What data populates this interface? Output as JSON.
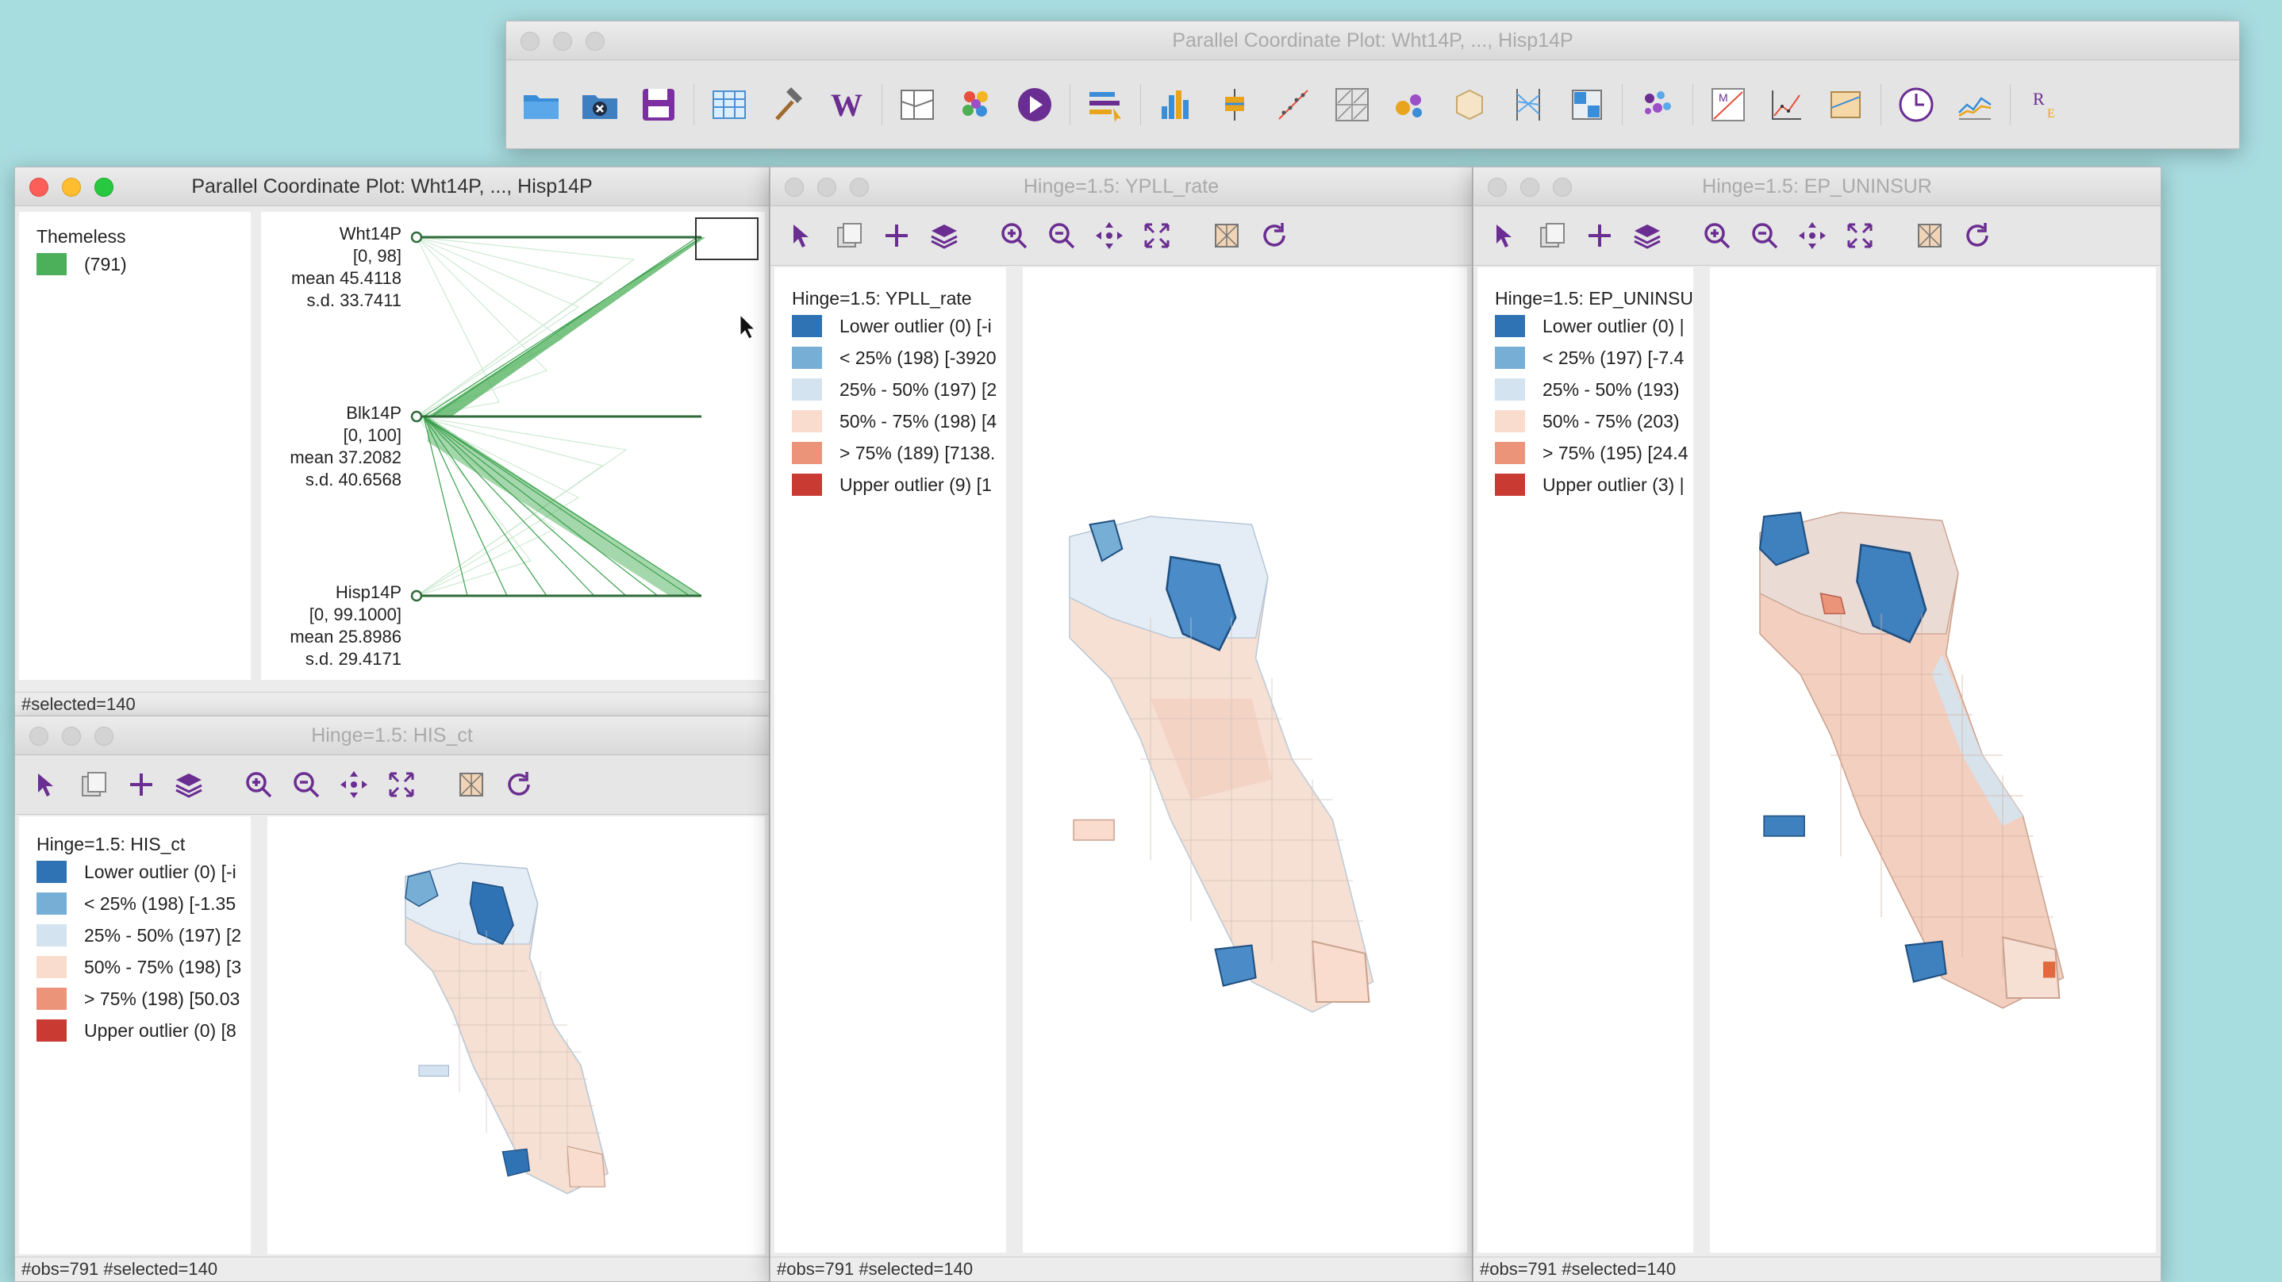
{
  "main_window": {
    "title": "Parallel Coordinate Plot: Wht14P, ..., Hisp14P"
  },
  "main_toolbar": {
    "icons": [
      "folder-open-icon",
      "close-project-icon",
      "save-icon",
      "table-icon",
      "hammer-icon",
      "weights-icon",
      "map-grid-icon",
      "cluster-icon",
      "play-icon",
      "category-editor-icon",
      "histogram-icon",
      "box-plot-icon",
      "scatter-plot-icon",
      "scatter-matrix-icon",
      "bubble-chart-icon",
      "cube-3d-icon",
      "parallel-coordinate-icon",
      "conditional-plot-icon",
      "lisa-cluster-icon",
      "moran-scatter-icon",
      "moran-matrix-icon",
      "correlogram-icon",
      "time-editor-icon",
      "line-chart-icon",
      "regression-icon"
    ]
  },
  "pcp": {
    "title": "Parallel Coordinate Plot: Wht14P, ..., Hisp14P",
    "legend_title": "Themeless",
    "legend_count": "(791)",
    "legend_color": "#4caf5a",
    "axes": [
      {
        "name": "Wht14P",
        "range": "[0, 98]",
        "mean": "mean  45.4118",
        "sd": "s.d.  33.7411"
      },
      {
        "name": "Blk14P",
        "range": "[0, 100]",
        "mean": "mean  37.2082",
        "sd": "s.d.  40.6568"
      },
      {
        "name": "Hisp14P",
        "range": "[0, 99.1000]",
        "mean": "mean  25.8986",
        "sd": "s.d.  29.4171"
      }
    ],
    "status": "#selected=140"
  },
  "maps": {
    "his": {
      "title": "Hinge=1.5: HIS_ct",
      "legend_title": "Hinge=1.5: HIS_ct",
      "items": [
        {
          "label": "Lower outlier (0)  [-i",
          "color": "#2f73b5"
        },
        {
          "label": "< 25% (198)  [-1.35",
          "color": "#76aed6"
        },
        {
          "label": "25% - 50% (197)  [2",
          "color": "#d4e3f0"
        },
        {
          "label": "50% - 75% (198)  [3",
          "color": "#f9dccd"
        },
        {
          "label": "> 75% (198)  [50.03",
          "color": "#eb9479"
        },
        {
          "label": "Upper outlier (0)  [8",
          "color": "#c93a33"
        }
      ],
      "status": "#obs=791 #selected=140"
    },
    "ypll": {
      "title": "Hinge=1.5: YPLL_rate",
      "legend_title": "Hinge=1.5: YPLL_rate",
      "items": [
        {
          "label": "Lower outlier (0)  [-i",
          "color": "#2f73b5"
        },
        {
          "label": "< 25% (198)  [-3920",
          "color": "#76aed6"
        },
        {
          "label": "25% - 50% (197)  [2",
          "color": "#d4e3f0"
        },
        {
          "label": "50% - 75% (198)  [4",
          "color": "#f9dccd"
        },
        {
          "label": "> 75% (189)  [7138.",
          "color": "#eb9479"
        },
        {
          "label": "Upper outlier (9)  [1",
          "color": "#c93a33"
        }
      ],
      "status": "#obs=791 #selected=140"
    },
    "epun": {
      "title": "Hinge=1.5: EP_UNINSUR",
      "legend_title": "Hinge=1.5: EP_UNINSU",
      "items": [
        {
          "label": "Lower outlier (0)  |",
          "color": "#2f73b5"
        },
        {
          "label": "< 25% (197)  [-7.4",
          "color": "#76aed6"
        },
        {
          "label": "25% - 50% (193)",
          "color": "#d4e3f0"
        },
        {
          "label": "50% - 75% (203)",
          "color": "#f9dccd"
        },
        {
          "label": "> 75% (195)  [24.4",
          "color": "#eb9479"
        },
        {
          "label": "Upper outlier (3)  |",
          "color": "#c93a33"
        }
      ],
      "status": "#obs=791 #selected=140"
    }
  },
  "map_toolbar_icons": [
    "select-icon",
    "copy-icon",
    "add-icon",
    "layers-icon",
    "zoom-in-icon",
    "zoom-out-icon",
    "pan-icon",
    "full-extent-icon",
    "basemap-icon",
    "refresh-icon"
  ]
}
